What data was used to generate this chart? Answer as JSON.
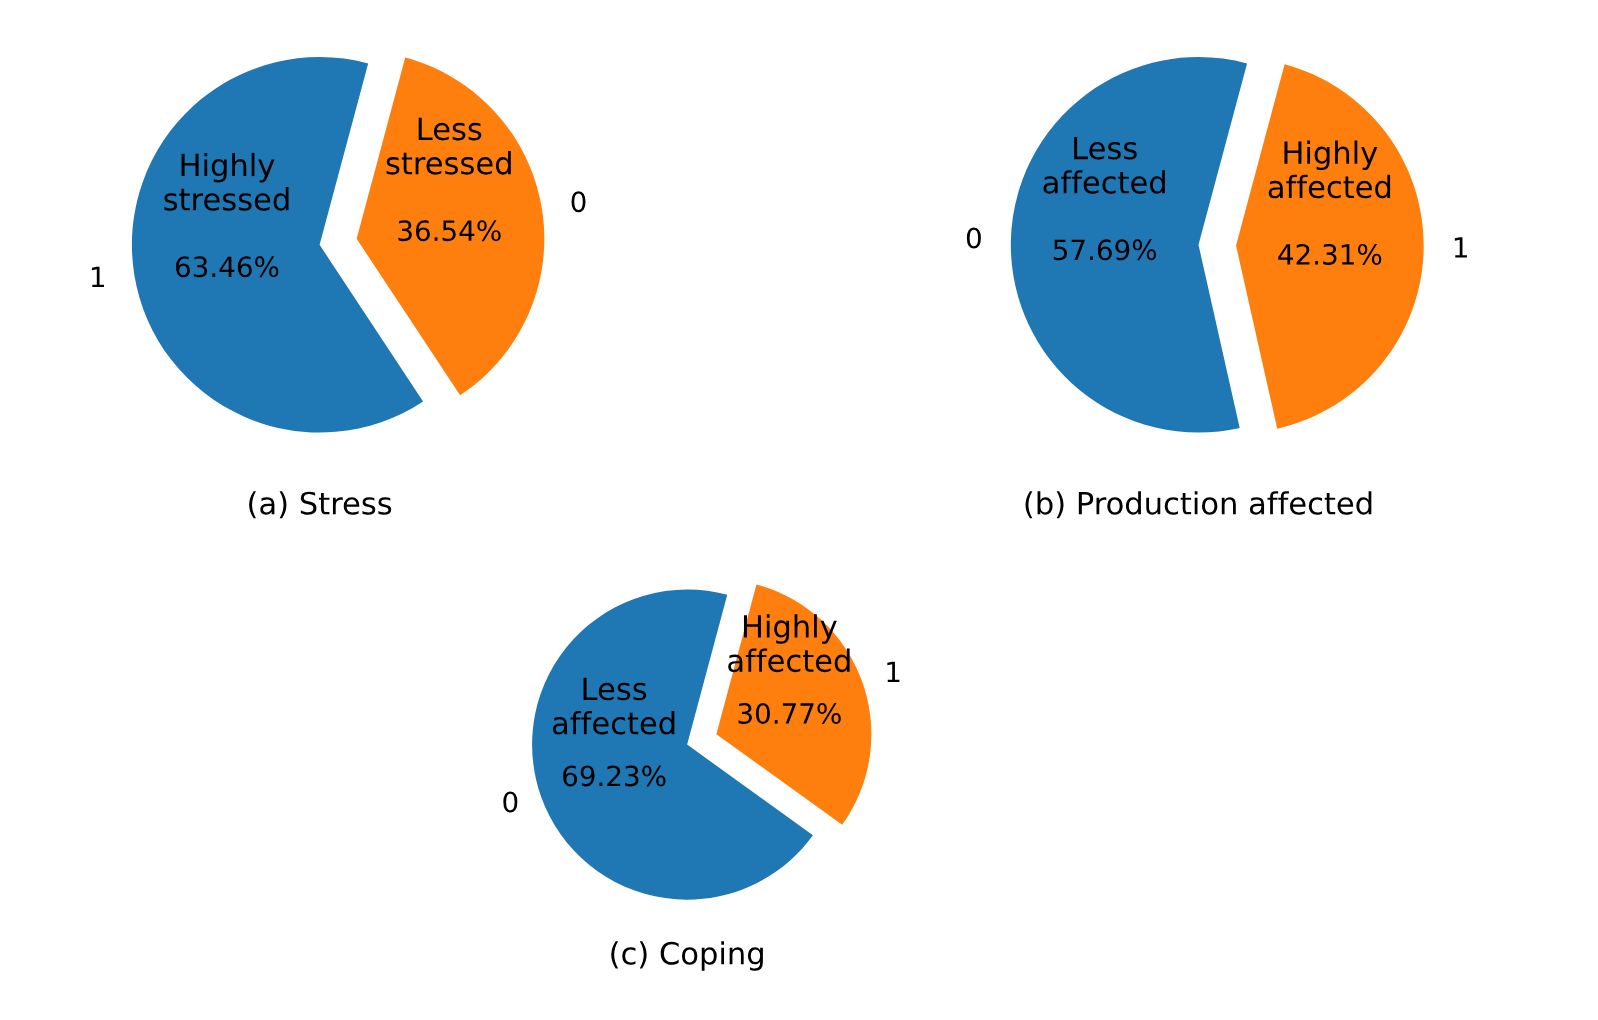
{
  "chart_data": [
    {
      "type": "pie",
      "title": "(a) Stress",
      "categories": [
        "1",
        "0"
      ],
      "values": [
        63.46,
        36.54
      ],
      "colors": [
        "#1f77b4",
        "#ff7f0e"
      ],
      "value_labels": [
        "63.46%",
        "36.54%"
      ],
      "annotations": [
        "Highly\nstressed",
        "Less\nstressed"
      ]
    },
    {
      "type": "pie",
      "title": "(b) Production affected",
      "categories": [
        "0",
        "1"
      ],
      "values": [
        57.69,
        42.31
      ],
      "colors": [
        "#1f77b4",
        "#ff7f0e"
      ],
      "value_labels": [
        "57.69%",
        "42.31%"
      ],
      "annotations": [
        "Less\naffected",
        "Highly\naffected"
      ]
    },
    {
      "type": "pie",
      "title": "(c) Coping",
      "categories": [
        "0",
        "1"
      ],
      "values": [
        69.23,
        30.77
      ],
      "colors": [
        "#1f77b4",
        "#ff7f0e"
      ],
      "value_labels": [
        "69.23%",
        "30.77%"
      ],
      "annotations": [
        "Less\naffected",
        "Highly\naffected"
      ]
    }
  ]
}
